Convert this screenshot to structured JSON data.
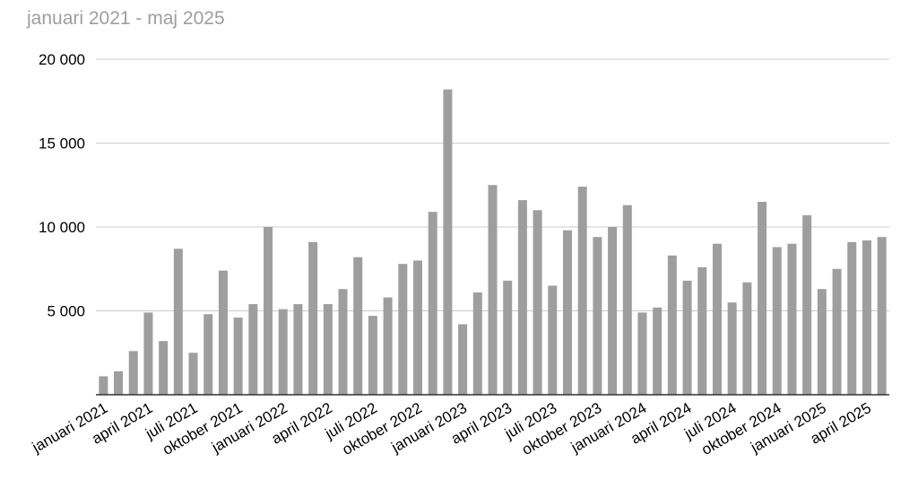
{
  "chart_data": {
    "type": "bar",
    "title": "januari 2021 - maj 2025",
    "categories": [
      "januari 2021",
      null,
      null,
      "april 2021",
      null,
      null,
      "juli 2021",
      null,
      null,
      "oktober 2021",
      null,
      null,
      "januari 2022",
      null,
      null,
      "april 2022",
      null,
      null,
      "juli 2022",
      null,
      null,
      "oktober 2022",
      null,
      null,
      "januari 2023",
      null,
      null,
      "april 2023",
      null,
      null,
      "juli 2023",
      null,
      null,
      "oktober 2023",
      null,
      null,
      "januari 2024",
      null,
      null,
      "april 2024",
      null,
      null,
      "juli 2024",
      null,
      null,
      "oktober 2024",
      null,
      null,
      "januari 2025",
      null,
      null,
      "april 2025",
      null
    ],
    "values": [
      1100,
      1400,
      2600,
      4900,
      3200,
      8700,
      2500,
      4800,
      7400,
      4600,
      5400,
      10000,
      5100,
      5400,
      9100,
      5400,
      6300,
      8200,
      4700,
      5800,
      7800,
      8000,
      10900,
      18200,
      4200,
      6100,
      12500,
      6800,
      11600,
      11000,
      6500,
      9800,
      12400,
      9400,
      10000,
      11300,
      4900,
      5200,
      8300,
      6800,
      7600,
      9000,
      5500,
      6700,
      11500,
      8800,
      9000,
      10700,
      6300,
      7500,
      9100,
      9200,
      9400
    ],
    "color": "#9e9e9e",
    "ylim": [
      0,
      20000
    ],
    "yticks": [
      {
        "value": 5000,
        "label": "5 000"
      },
      {
        "value": 10000,
        "label": "10 000"
      },
      {
        "value": 15000,
        "label": "15 000"
      },
      {
        "value": 20000,
        "label": "20 000"
      }
    ],
    "grid": true
  }
}
